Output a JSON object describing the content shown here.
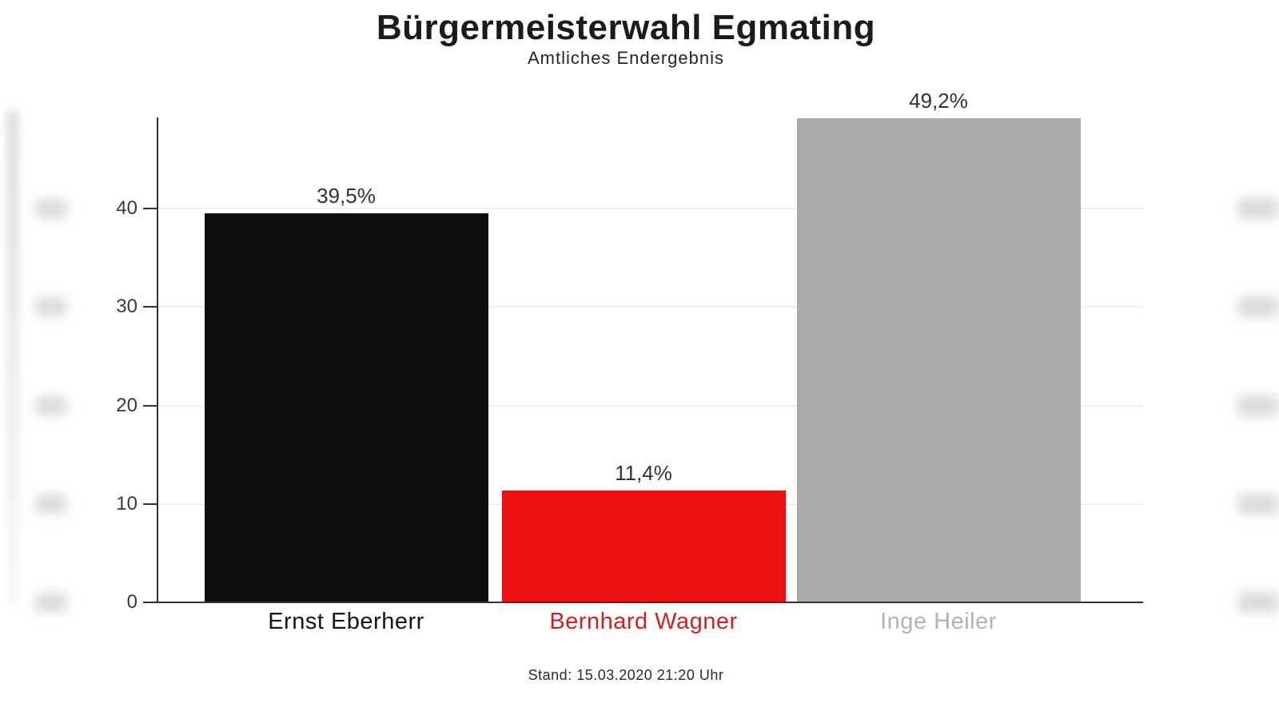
{
  "chart_data": {
    "type": "bar",
    "title": "Bürgermeisterwahl Egmating",
    "subtitle": "Amtliches Endergebnis",
    "annotation": "Stand: 15.03.2020 21:20 Uhr",
    "categories": [
      "Ernst Eberherr",
      "Bernhard Wagner",
      "Inge Heiler"
    ],
    "values": [
      39.5,
      11.4,
      49.2
    ],
    "value_labels": [
      "39,5%",
      "11,4%",
      "49,2%"
    ],
    "unit": "%",
    "bar_colors": [
      "#0f0f0f",
      "#ee1111",
      "#aaaaaa"
    ],
    "label_colors": [
      "#151515",
      "#cc2222",
      "#b3b3b3"
    ],
    "ylim": [
      0,
      49.2
    ],
    "yticks": [
      0,
      10,
      20,
      30,
      40
    ],
    "grid": true,
    "legend": "none"
  }
}
